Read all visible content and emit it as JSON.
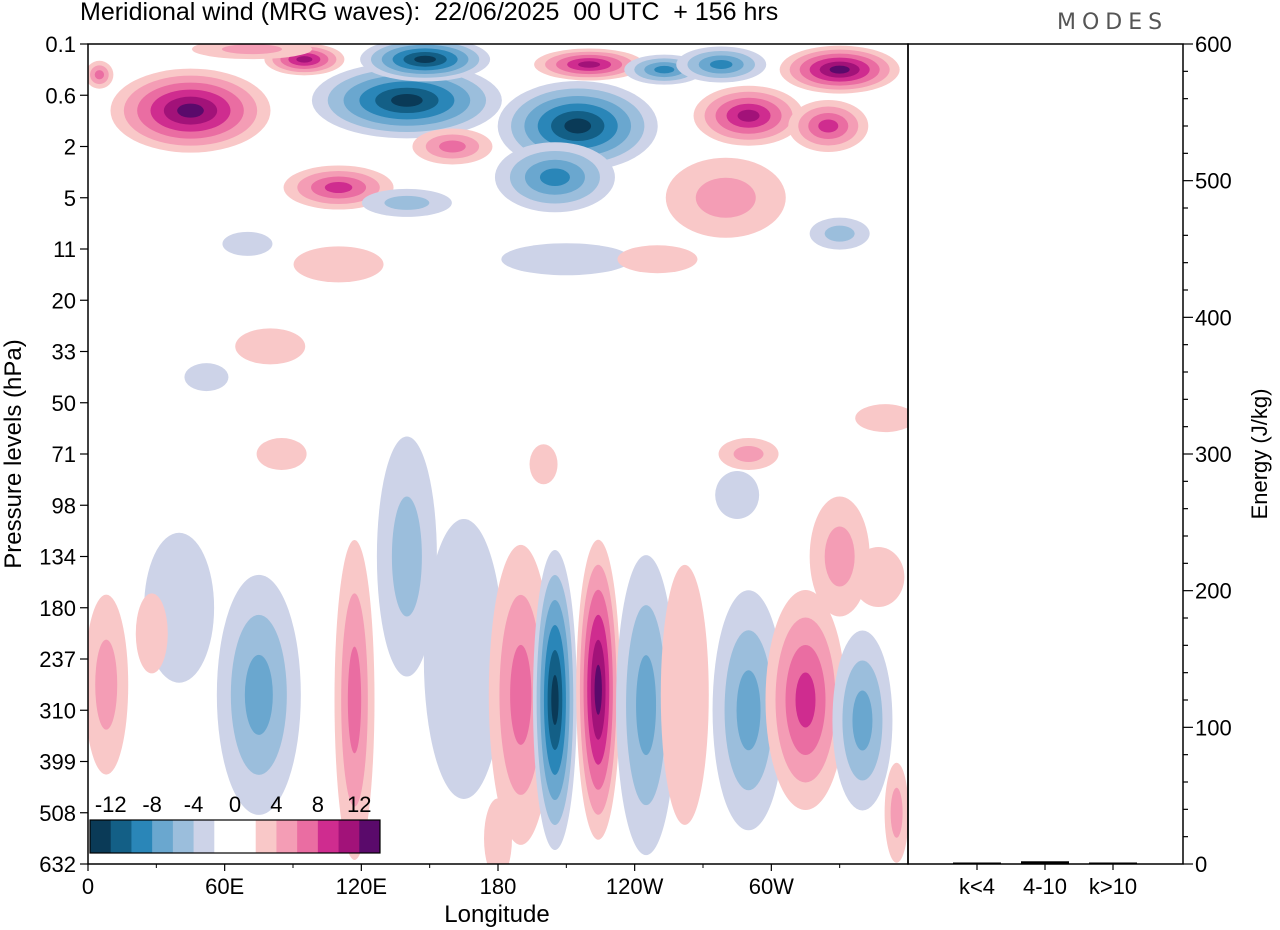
{
  "header": {
    "title": "Meridional wind (MRG waves):  22/06/2025  00 UTC  + 156 hrs",
    "logo": "MODES"
  },
  "chart_data": [
    {
      "type": "heatmap",
      "title": "Meridional wind (MRG waves):  22/06/2025  00 UTC  + 156 hrs",
      "xlabel": "Longitude",
      "ylabel": "Pressure levels (hPa)",
      "x_tick_labels": [
        "0",
        "60E",
        "120E",
        "180",
        "120W",
        "60W"
      ],
      "y_tick_labels": [
        "0.1",
        "0.6",
        "2",
        "5",
        "11",
        "20",
        "33",
        "50",
        "71",
        "98",
        "134",
        "180",
        "237",
        "310",
        "399",
        "508",
        "632"
      ],
      "colorbar": {
        "labels": [
          "-12",
          "-8",
          "-4",
          "0",
          "4",
          "8",
          "12"
        ],
        "levels": [
          -14,
          -12,
          -10,
          -8,
          -6,
          -4,
          -2,
          0,
          2,
          4,
          6,
          8,
          10,
          12,
          14
        ],
        "colors": [
          "#0a3a57",
          "#135f86",
          "#2a86b8",
          "#6aa7cf",
          "#9bbedc",
          "#cdd3e8",
          "#ffffff",
          "#ffffff",
          "#f9c8c8",
          "#f49db5",
          "#ea6da2",
          "#cf2c8f",
          "#a21279",
          "#5a0a6b"
        ]
      },
      "features": [
        {
          "lon": 40,
          "level": "0.6",
          "value": 14
        },
        {
          "lon": 95,
          "level": "0.1",
          "value": 12
        },
        {
          "lon": 135,
          "level": "0.6",
          "value": -14
        },
        {
          "lon": 150,
          "level": "0.1",
          "value": -14
        },
        {
          "lon": 210,
          "level": "2",
          "value": -14
        },
        {
          "lon": 330,
          "level": "0.1",
          "value": 14
        },
        {
          "lon": 280,
          "level": "0.6",
          "value": 12
        },
        {
          "lon": 205,
          "level": "237",
          "value": -14
        },
        {
          "lon": 225,
          "level": "237",
          "value": 14
        },
        {
          "lon": 315,
          "level": "310",
          "value": 10
        },
        {
          "lon": 340,
          "level": "310",
          "value": -10
        }
      ]
    },
    {
      "type": "bar",
      "categories": [
        "k<4",
        "4-10",
        "k>10"
      ],
      "values": [
        1,
        2,
        1
      ],
      "ylabel": "Energy (J/kg)",
      "y_tick_labels": [
        "0",
        "100",
        "200",
        "300",
        "400",
        "500",
        "600"
      ],
      "ylim": [
        0,
        600
      ]
    }
  ]
}
